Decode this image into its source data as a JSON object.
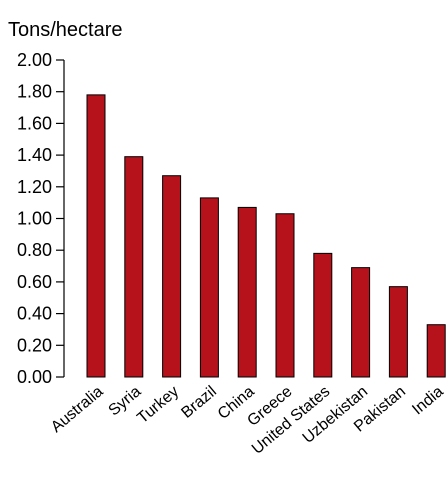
{
  "chart_data": {
    "type": "bar",
    "title": "",
    "xlabel": "",
    "ylabel": "Tons/hectare",
    "ylim": [
      0,
      2.0
    ],
    "yticks": [
      "0.00",
      "0.20",
      "0.40",
      "0.60",
      "0.80",
      "1.00",
      "1.20",
      "1.40",
      "1.60",
      "1.80",
      "2.00"
    ],
    "categories": [
      "Australia",
      "Syria",
      "Turkey",
      "Brazil",
      "China",
      "Greece",
      "United States",
      "Uzbekistan",
      "Pakistan",
      "India"
    ],
    "values": [
      1.78,
      1.39,
      1.27,
      1.13,
      1.07,
      1.03,
      0.78,
      0.69,
      0.57,
      0.33
    ],
    "bar_color": "#b5121b",
    "bar_outline": "#000000",
    "grid": false,
    "legend": "none"
  }
}
